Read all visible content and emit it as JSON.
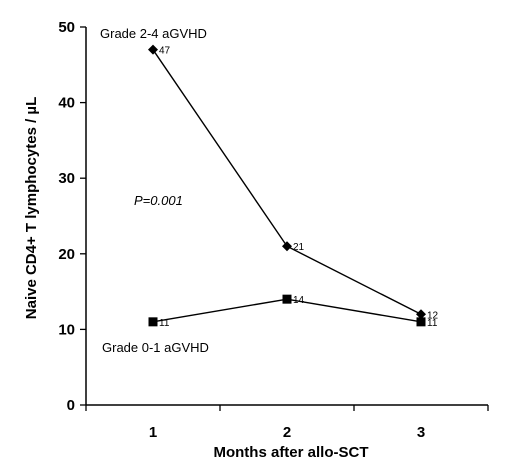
{
  "chart_data": {
    "type": "line",
    "xlabel": "Months after allo-SCT",
    "ylabel": "Naive CD4+ T lymphocytes / µL",
    "x": [
      1,
      2,
      3
    ],
    "xticks": [
      "1",
      "2",
      "3"
    ],
    "xlim": [
      0.5,
      3.5
    ],
    "ylim": [
      0,
      50
    ],
    "yticks": [
      "0",
      "10",
      "20",
      "30",
      "40",
      "50"
    ],
    "grid": false,
    "legend": "none",
    "series": [
      {
        "name": "Grade 2-4 aGVHD",
        "values": [
          47,
          21,
          12
        ],
        "point_labels": [
          "47",
          "21",
          "12"
        ],
        "marker": "diamond",
        "color": "#000000"
      },
      {
        "name": "Grade 0-1 aGVHD",
        "values": [
          11,
          14,
          11
        ],
        "point_labels": [
          "11",
          "14",
          "11"
        ],
        "marker": "square",
        "color": "#000000"
      }
    ],
    "annotations": [
      {
        "text": "P=0.001",
        "style": "italic"
      }
    ]
  }
}
